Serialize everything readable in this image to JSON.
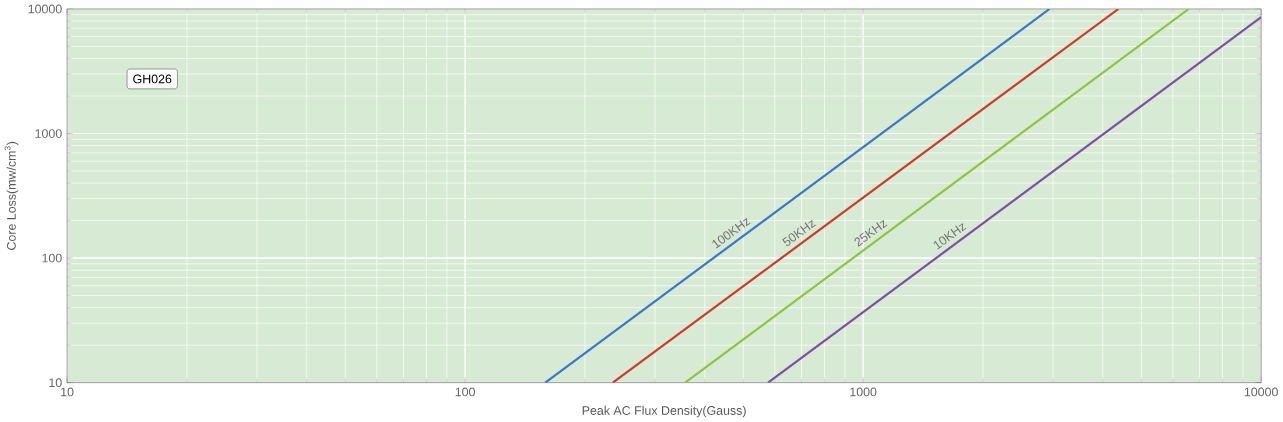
{
  "chart_data": {
    "type": "line",
    "xlabel": "Peak AC Flux Density(Gauss)",
    "ylabel": "Core Loss(mw/cm$^{3}$)",
    "annotations": [
      "GH026"
    ],
    "log": "xy",
    "grid": true,
    "xlim": [
      10,
      10000
    ],
    "ylim": [
      10,
      10000
    ],
    "xticks": [
      10,
      100,
      1000,
      10000
    ],
    "yticks": [
      10,
      100,
      1000,
      10000
    ],
    "series": [
      {
        "name": "100KHz",
        "color": "#3a78c8",
        "x": [
          159,
          2940
        ],
        "values": [
          10,
          10000
        ]
      },
      {
        "name": "50KHz",
        "color": "#d03a2a",
        "x": [
          235,
          4380
        ],
        "values": [
          10,
          10000
        ]
      },
      {
        "name": "25KHz",
        "color": "#8cc63f",
        "x": [
          357,
          6580
        ],
        "values": [
          10,
          10000
        ]
      },
      {
        "name": "10KHz",
        "color": "#7e4fa8",
        "x": [
          577,
          10000
        ],
        "values": [
          10,
          8600
        ]
      }
    ]
  }
}
